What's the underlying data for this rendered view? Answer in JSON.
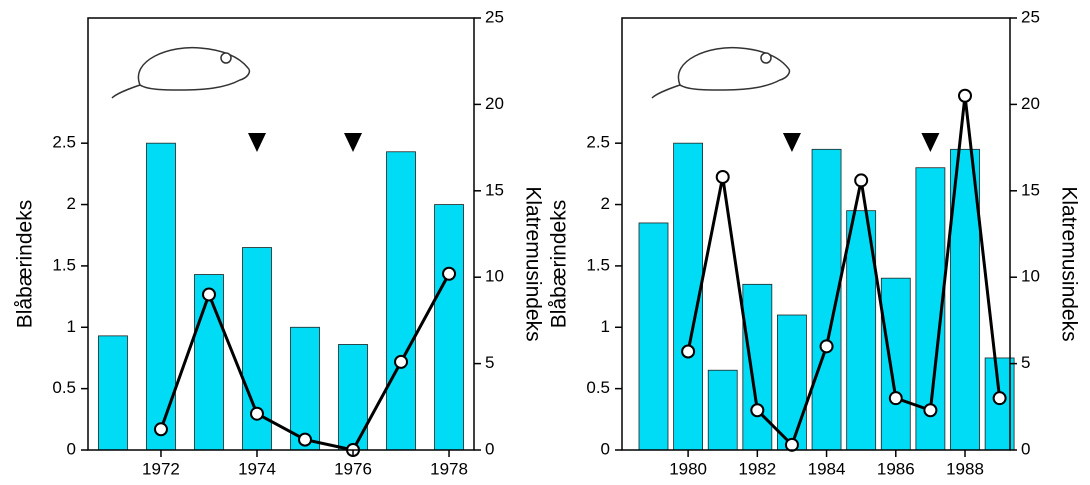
{
  "chart_data": [
    {
      "type": "bar",
      "ylabel": "Blåbærindeks",
      "y2label": "Klatremusindeks",
      "x": [
        1971,
        1972,
        1973,
        1974,
        1975,
        1976,
        1977,
        1978
      ],
      "series": [
        {
          "type": "bar",
          "color": "#00dcf5",
          "values": [
            0.93,
            2.5,
            1.43,
            1.65,
            1.0,
            0.86,
            2.43,
            2.0
          ]
        },
        {
          "type": "line",
          "axis": "y2",
          "color": "#000000",
          "values": [
            null,
            1.2,
            9.0,
            2.1,
            0.6,
            0,
            5.1,
            10.2
          ]
        }
      ],
      "markers": [
        1974,
        1976
      ],
      "xlim": [
        1970.48,
        1978.52
      ],
      "xticks": [
        1972,
        1974,
        1976,
        1978
      ],
      "ylim": [
        0,
        3.52
      ],
      "yticks": [
        0,
        0.5,
        1,
        1.5,
        2,
        2.5
      ],
      "y2lim": [
        0,
        25
      ],
      "y2ticks": [
        0,
        5,
        10,
        15,
        20,
        25
      ]
    },
    {
      "type": "bar",
      "ylabel": "Blåbærindeks",
      "y2label": "Klatremusindeks",
      "x": [
        1979,
        1980,
        1981,
        1982,
        1983,
        1984,
        1985,
        1986,
        1987,
        1988,
        1989
      ],
      "series": [
        {
          "type": "bar",
          "color": "#00dcf5",
          "values": [
            1.85,
            2.5,
            0.65,
            1.35,
            1.1,
            2.45,
            1.95,
            1.4,
            2.3,
            2.45,
            0.75
          ]
        },
        {
          "type": "line",
          "axis": "y2",
          "color": "#000000",
          "values": [
            null,
            5.7,
            15.8,
            2.3,
            0.3,
            6.0,
            15.6,
            3.0,
            2.3,
            20.5,
            3.0
          ]
        }
      ],
      "markers": [
        1983,
        1987
      ],
      "xlim": [
        1978.09,
        1989.3
      ],
      "xticks": [
        1980,
        1982,
        1984,
        1986,
        1988
      ],
      "ylim": [
        0,
        3.52
      ],
      "yticks": [
        0,
        0.5,
        1,
        1.5,
        2,
        2.5
      ],
      "y2lim": [
        0,
        25
      ],
      "y2ticks": [
        0,
        5,
        10,
        15,
        20,
        25
      ]
    }
  ]
}
